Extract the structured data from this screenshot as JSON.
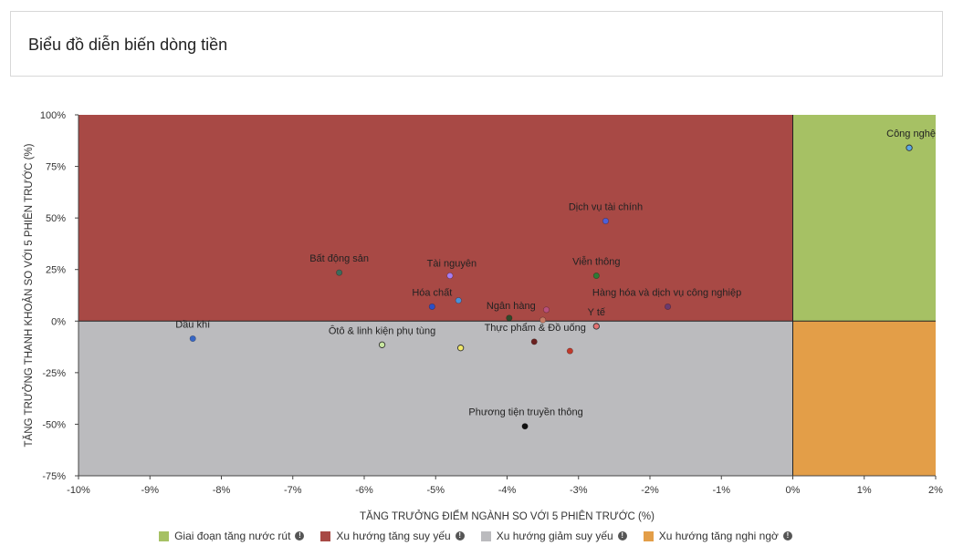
{
  "header": {
    "title": "Biểu đồ diễn biến dòng tiền"
  },
  "chart_data": {
    "type": "scatter",
    "xlabel": "TĂNG TRƯỞNG ĐIỂM NGÀNH SO VỚI 5 PHIÊN TRƯỚC (%)",
    "ylabel": "TĂNG TRƯỞNG THANH KHOẢN SO VỚI 5 PHIÊN TRƯỚC (%)",
    "xlim": [
      -10,
      2
    ],
    "ylim": [
      -75,
      100
    ],
    "x_ticks": [
      -10,
      -9,
      -8,
      -7,
      -6,
      -5,
      -4,
      -3,
      -2,
      -1,
      0,
      1,
      2
    ],
    "x_tick_labels": [
      "-10%",
      "-9%",
      "-8%",
      "-7%",
      "-6%",
      "-5%",
      "-4%",
      "-3%",
      "-2%",
      "-1%",
      "0%",
      "1%",
      "2%"
    ],
    "y_ticks": [
      100,
      75,
      50,
      25,
      0,
      -25,
      -50,
      -75
    ],
    "y_tick_labels": [
      "100%",
      "75%",
      "50%",
      "25%",
      "0%",
      "-25%",
      "-50%",
      "-75%"
    ],
    "quadrants": [
      {
        "name": "Giai đoạn tăng nước rút",
        "color": "#a6c164",
        "x": [
          0,
          2
        ],
        "y": [
          0,
          100
        ]
      },
      {
        "name": "Xu hướng tăng suy yếu",
        "color": "#a84945",
        "x": [
          -10,
          0
        ],
        "y": [
          0,
          100
        ]
      },
      {
        "name": "Xu hướng giảm suy yếu",
        "color": "#bbbbbe",
        "x": [
          -10,
          0
        ],
        "y": [
          -75,
          0
        ]
      },
      {
        "name": "Xu hướng tăng nghi ngờ",
        "color": "#e39e48",
        "x": [
          0,
          2
        ],
        "y": [
          -75,
          0
        ]
      }
    ],
    "points": [
      {
        "label": "Công nghệ",
        "x": 1.63,
        "y": 84,
        "color": "#5ba8e6",
        "hollow": true
      },
      {
        "label": "Dịch vụ tài chính",
        "x": -2.62,
        "y": 48.5,
        "color": "#4d5fd6"
      },
      {
        "label": "Bất động sản",
        "x": -6.35,
        "y": 23.5,
        "color": "#3d6b5b"
      },
      {
        "label": "Tài nguyên",
        "x": -4.8,
        "y": 22,
        "color": "#a77df2"
      },
      {
        "label": "Viễn thông",
        "x": -2.75,
        "y": 22,
        "color": "#2e7a35"
      },
      {
        "label": "Hóa chất",
        "x": -5.05,
        "y": 7,
        "color": "#2a4fc8"
      },
      {
        "label": "",
        "x": -4.68,
        "y": 10,
        "color": "#4a90d9"
      },
      {
        "label": "Hàng hóa và dịch vụ công nghiệp",
        "x": -1.75,
        "y": 7,
        "color": "#6a3a6e"
      },
      {
        "label": "Ngân hàng",
        "x": -3.97,
        "y": 1.5,
        "color": "#2f4a2a"
      },
      {
        "label": "",
        "x": -3.45,
        "y": 5.5,
        "color": "#b8507c"
      },
      {
        "label": "",
        "x": -3.5,
        "y": 0.5,
        "color": "#c47a64"
      },
      {
        "label": "Y tế",
        "x": -2.75,
        "y": -2.5,
        "color": "#e47272",
        "hollow": true
      },
      {
        "label": "Thực phẩm & Đồ uống",
        "x": -3.62,
        "y": -10,
        "color": "#6b2120"
      },
      {
        "label": "",
        "x": -3.12,
        "y": -14.5,
        "color": "#c0392b"
      },
      {
        "label": "Dầu khí",
        "x": -8.4,
        "y": -8.5,
        "color": "#3766c4"
      },
      {
        "label": "Ôtô & linh kiện phụ tùng",
        "x": -5.75,
        "y": -11.5,
        "color": "#c8e6a0",
        "hollow": true
      },
      {
        "label": "",
        "x": -4.65,
        "y": -13,
        "color": "#f1e86a",
        "hollow": true
      },
      {
        "label": "Phương tiện truyền thông",
        "x": -3.75,
        "y": -51,
        "color": "#111111"
      }
    ]
  },
  "legend": {
    "items": [
      {
        "label": "Giai đoạn tăng nước rút",
        "color": "#a6c164"
      },
      {
        "label": "Xu hướng tăng suy yếu",
        "color": "#a84945"
      },
      {
        "label": "Xu hướng giảm suy yếu",
        "color": "#bbbbbe"
      },
      {
        "label": "Xu hướng tăng nghi ngờ",
        "color": "#e39e48"
      }
    ],
    "info_icon": "info-circle-icon"
  }
}
